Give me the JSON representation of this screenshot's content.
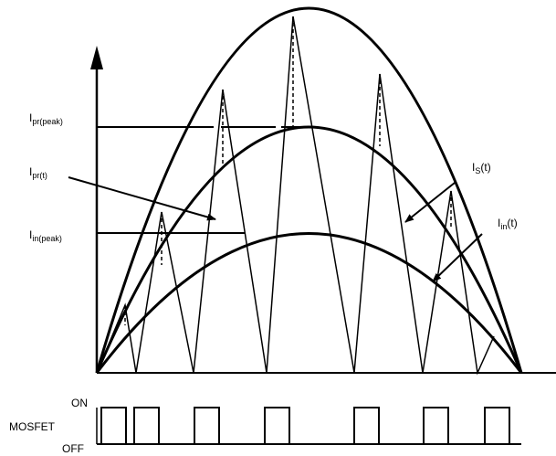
{
  "labels": {
    "ipr_peak": {
      "main": "I",
      "sub": "pr(peak)"
    },
    "ipr_t": {
      "main": "I",
      "sub": "pr(t)"
    },
    "iin_peak": {
      "main": "I",
      "sub": "in(peak)"
    },
    "is_t": {
      "main": "I",
      "sub": "S",
      "tail": "(t)"
    },
    "iin_t": {
      "main": "I",
      "sub": "in",
      "tail": "(t)"
    }
  },
  "mosfet": {
    "name": "MOSFET",
    "on": "ON",
    "off": "OFF"
  }
}
